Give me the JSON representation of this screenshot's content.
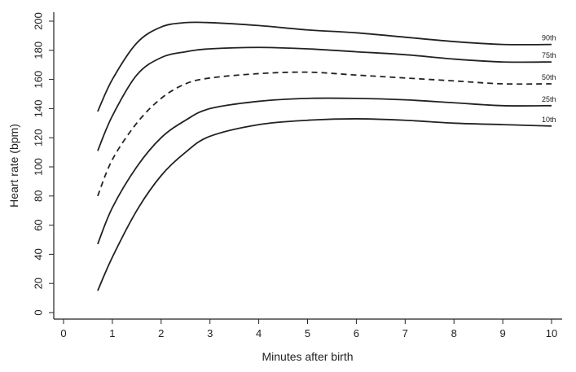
{
  "chart_data": {
    "type": "line",
    "xlabel": "Minutes after birth",
    "ylabel": "Heart rate (bpm)",
    "xlim": [
      0,
      10
    ],
    "ylim": [
      0,
      200
    ],
    "x_ticks": [
      0,
      1,
      2,
      3,
      4,
      5,
      6,
      7,
      8,
      9,
      10
    ],
    "y_ticks": [
      0,
      20,
      40,
      60,
      80,
      100,
      120,
      140,
      160,
      180,
      200
    ],
    "grid": false,
    "series": [
      {
        "name": "90th",
        "style": "solid",
        "x": [
          0.7,
          1,
          1.5,
          2,
          2.5,
          3,
          4,
          5,
          6,
          7,
          8,
          9,
          10
        ],
        "y": [
          138,
          160,
          185,
          196,
          199,
          199,
          197,
          194,
          192,
          189,
          186,
          184,
          184
        ]
      },
      {
        "name": "75th",
        "style": "solid",
        "x": [
          0.7,
          1,
          1.5,
          2,
          2.5,
          3,
          4,
          5,
          6,
          7,
          8,
          9,
          10
        ],
        "y": [
          111,
          135,
          163,
          175,
          179,
          181,
          182,
          181,
          179,
          177,
          174,
          172,
          172
        ]
      },
      {
        "name": "50th",
        "style": "dashed",
        "x": [
          0.7,
          1,
          1.5,
          2,
          2.5,
          3,
          4,
          5,
          6,
          7,
          8,
          9,
          10
        ],
        "y": [
          80,
          105,
          130,
          147,
          157,
          161,
          164,
          165,
          163,
          161,
          159,
          157,
          157
        ]
      },
      {
        "name": "25th",
        "style": "solid",
        "x": [
          0.7,
          1,
          1.5,
          2,
          2.5,
          3,
          4,
          5,
          6,
          7,
          8,
          9,
          10
        ],
        "y": [
          47,
          72,
          100,
          120,
          132,
          140,
          145,
          147,
          147,
          146,
          144,
          142,
          142
        ]
      },
      {
        "name": "10th",
        "style": "solid",
        "x": [
          0.7,
          1,
          1.5,
          2,
          2.5,
          3,
          4,
          5,
          6,
          7,
          8,
          9,
          10
        ],
        "y": [
          15,
          38,
          70,
          94,
          110,
          121,
          129,
          132,
          133,
          132,
          130,
          129,
          128
        ]
      }
    ]
  }
}
